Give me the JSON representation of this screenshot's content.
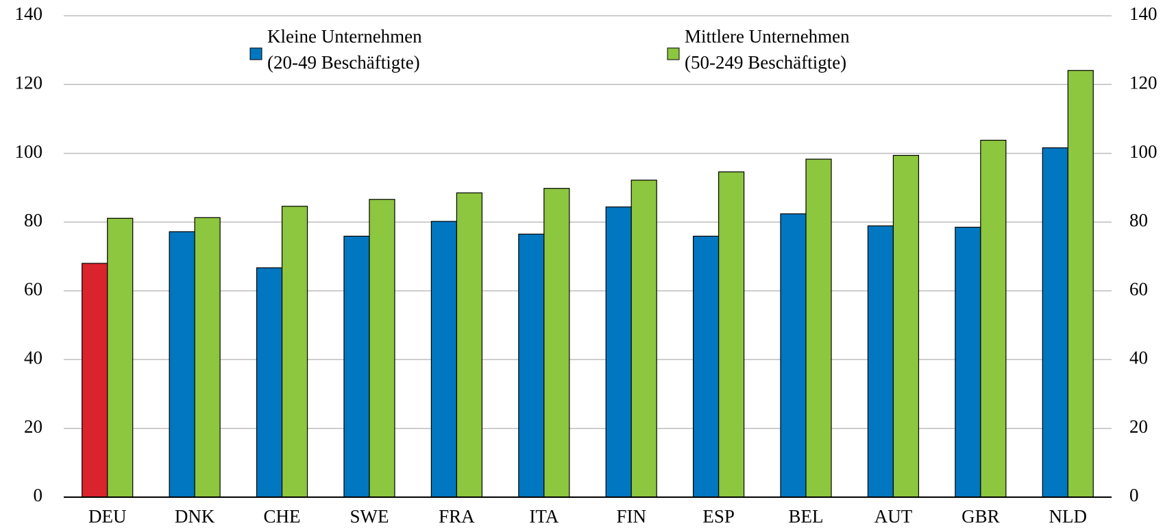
{
  "chart_data": {
    "type": "bar",
    "categories": [
      "DEU",
      "DNK",
      "CHE",
      "SWE",
      "FRA",
      "ITA",
      "FIN",
      "ESP",
      "BEL",
      "AUT",
      "GBR",
      "NLD"
    ],
    "series": [
      {
        "name": [
          "Kleine Unternehmen",
          "(20-49 Beschäftigte)"
        ],
        "color": "#0077c0",
        "colors": [
          "#d9232d",
          "#0077c0",
          "#0077c0",
          "#0077c0",
          "#0077c0",
          "#0077c0",
          "#0077c0",
          "#0077c0",
          "#0077c0",
          "#0077c0",
          "#0077c0",
          "#0077c0"
        ],
        "values": [
          68,
          77.2,
          66.7,
          75.9,
          80.2,
          76.5,
          84.4,
          75.9,
          82.4,
          78.9,
          78.5,
          101.6
        ]
      },
      {
        "name": [
          "Mittlere Unternehmen",
          "(50-249 Beschäftigte)"
        ],
        "color": "#8dc63f",
        "values": [
          81.1,
          81.3,
          84.6,
          86.6,
          88.5,
          89.8,
          92.2,
          94.6,
          98.3,
          99.4,
          103.8,
          124.1
        ]
      }
    ],
    "ylim": [
      0,
      140
    ],
    "yticks": [
      0,
      20,
      40,
      60,
      80,
      100,
      120,
      140
    ],
    "y2lim": [
      0,
      140
    ],
    "y2ticks": [
      0,
      20,
      40,
      60,
      80,
      100,
      120,
      140
    ],
    "grid": true
  }
}
